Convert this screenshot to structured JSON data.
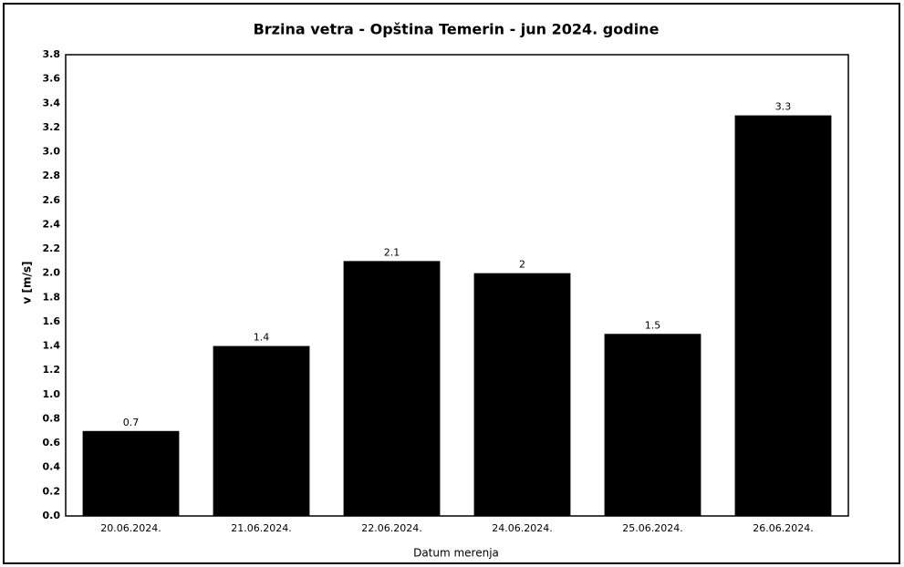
{
  "chart_data": {
    "type": "bar",
    "title": "Brzina vetra - Opština Temerin - jun 2024. godine",
    "x_label": "Datum merenja",
    "y_label": "v [m/s]",
    "categories": [
      "20.06.2024.",
      "21.06.2024.",
      "22.06.2024.",
      "24.06.2024.",
      "25.06.2024.",
      "26.06.2024."
    ],
    "values": [
      0.7,
      1.4,
      2.1,
      2,
      1.5,
      3.3
    ],
    "color": "#000000",
    "ylim": [
      0,
      3.8
    ],
    "yticks": [
      {
        "value": 0,
        "label": "0.0"
      },
      0.2,
      0.4,
      0.6,
      0.8,
      {
        "value": 1,
        "label": "1.0"
      },
      1.2,
      1.4,
      1.6,
      1.8,
      {
        "value": 2,
        "label": "2.0"
      },
      2.2,
      2.4,
      2.6,
      2.8,
      {
        "value": 3,
        "label": "3.0"
      },
      3.2,
      3.4,
      3.6,
      3.8
    ],
    "grid": false
  }
}
